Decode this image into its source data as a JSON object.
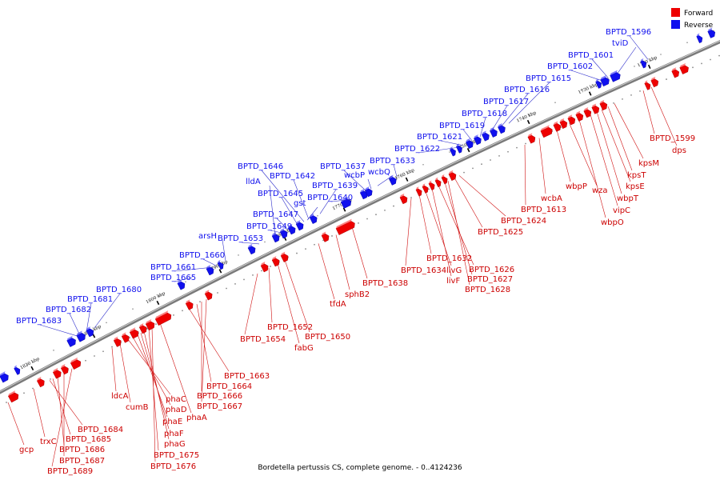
{
  "legend": [
    {
      "label": "Forward",
      "color": "#ee0000"
    },
    {
      "label": "Reverse",
      "color": "#1010ee"
    }
  ],
  "footer": "Bordetella pertussis CS, complete genome. - 0..4124236",
  "tick_labels": [
    "1820 kbp",
    "1810 kbp",
    "1800 kbp",
    "1790 kbp",
    "1780 kbp",
    "1770 kbp",
    "1760 kbp",
    "1750 kbp",
    "1740 kbp",
    "1730 kbp",
    "1720 kbp"
  ],
  "reverse_labels": [
    "BPTD_1683",
    "BPTD_1682",
    "BPTD_1681",
    "BPTD_1680",
    "BPTD_1665",
    "BPTD_1661",
    "BPTD_1660",
    "arsH",
    "BPTD_1653",
    "BPTD_1649",
    "BPTD_1647",
    "BPTD_1645",
    "lldA",
    "BPTD_1646",
    "BPTD_1642",
    "gst",
    "BPTD_1639",
    "BPTD_1640",
    "BPTD_1637",
    "wcbP",
    "wcbQ",
    "BPTD_1633",
    "BPTD_1622",
    "BPTD_1621",
    "BPTD_1619",
    "BPTD_1618",
    "BPTD_1617",
    "BPTD_1616",
    "BPTD_1615",
    "BPTD_1602",
    "BPTD_1601",
    "tviD",
    "BPTD_1596"
  ],
  "forward_labels": [
    "gcp",
    "trxC",
    "BPTD_1684",
    "BPTD_1685",
    "BPTD_1686",
    "BPTD_1687",
    "BPTD_1689",
    "ldcA",
    "cumB",
    "phaC",
    "phaD",
    "phaE",
    "phaF",
    "phaG",
    "BPTD_1675",
    "BPTD_1676",
    "phaA",
    "BPTD_1663",
    "BPTD_1664",
    "BPTD_1666",
    "BPTD_1667",
    "BPTD_1654",
    "BPTD_1652",
    "fabG",
    "BPTD_1650",
    "tfdA",
    "sphB2",
    "BPTD_1638",
    "BPTD_1634",
    "BPTD_1632",
    "livG",
    "livF",
    "BPTD_1626",
    "BPTD_1627",
    "BPTD_1628",
    "BPTD_1625",
    "BPTD_1624",
    "BPTD_1613",
    "wcbA",
    "wbpP",
    "wza",
    "wbpO",
    "vipC",
    "wbpT",
    "kpsE",
    "kpsT",
    "kpsM",
    "BPTD_1599",
    "dps"
  ]
}
